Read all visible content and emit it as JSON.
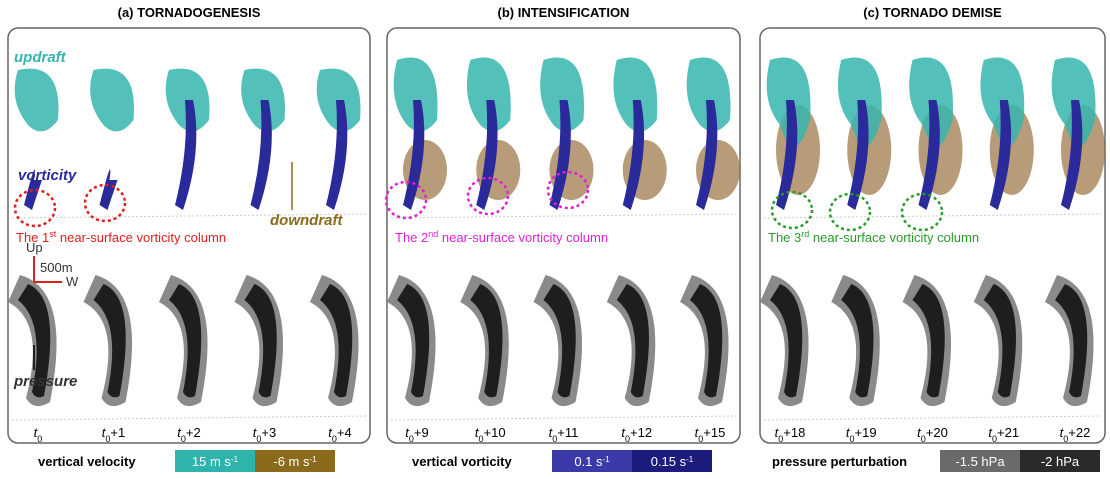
{
  "panels": [
    {
      "title": "(a) TORNADOGENESIS",
      "caption": {
        "before": "The 1",
        "sup": "st",
        "after": " near-surface vorticity column",
        "color": "#e0201c"
      },
      "times": [
        {
          "base": "t",
          "sub": "0"
        },
        {
          "base": "t",
          "sub": "0",
          "suffix": "+1"
        },
        {
          "base": "t",
          "sub": "0",
          "suffix": "+2"
        },
        {
          "base": "t",
          "sub": "0",
          "suffix": "+3"
        },
        {
          "base": "t",
          "sub": "0",
          "suffix": "+4"
        }
      ]
    },
    {
      "title": "(b) INTENSIFICATION",
      "caption": {
        "before": "The 2",
        "sup": "nd",
        "after": " near-surface vorticity column",
        "color": "#e020d0"
      },
      "times": [
        {
          "base": "t",
          "sub": "0",
          "suffix": "+9"
        },
        {
          "base": "t",
          "sub": "0",
          "suffix": "+10"
        },
        {
          "base": "t",
          "sub": "0",
          "suffix": "+11"
        },
        {
          "base": "t",
          "sub": "0",
          "suffix": "+12"
        },
        {
          "base": "t",
          "sub": "0",
          "suffix": "+15"
        }
      ]
    },
    {
      "title": "(c) TORNADO DEMISE",
      "caption": {
        "before": "The 3",
        "sup": "rd",
        "after": " near-surface vorticity column",
        "color": "#2a9a2a"
      },
      "times": [
        {
          "base": "t",
          "sub": "0",
          "suffix": "+18"
        },
        {
          "base": "t",
          "sub": "0",
          "suffix": "+19"
        },
        {
          "base": "t",
          "sub": "0",
          "suffix": "+20"
        },
        {
          "base": "t",
          "sub": "0",
          "suffix": "+21"
        },
        {
          "base": "t",
          "sub": "0",
          "suffix": "+22"
        }
      ]
    }
  ],
  "annotations": {
    "updraft": "updraft",
    "vorticity": "vorticity",
    "downdraft": "downdraft",
    "pressure": "pressure",
    "up": "Up",
    "scale": "500m",
    "west": "W"
  },
  "legends": [
    {
      "label": "vertical velocity",
      "items": [
        {
          "text": "15 m s",
          "sup": "-1",
          "color": "#2fb3ad"
        },
        {
          "text": "-6 m s",
          "sup": "-1",
          "color": "#8c6a1c"
        }
      ]
    },
    {
      "label": "vertical vorticity",
      "items": [
        {
          "text": "0.1 s",
          "sup": "-1",
          "color": "#3a3aa8"
        },
        {
          "text": "0.15 s",
          "sup": "-1",
          "color": "#1c1c7c"
        }
      ]
    },
    {
      "label": "pressure perturbation",
      "items": [
        {
          "text": "-1.5 hPa",
          "color": "#6a6a6a"
        },
        {
          "text": "-2 hPa",
          "color": "#2a2a2a"
        }
      ]
    }
  ]
}
